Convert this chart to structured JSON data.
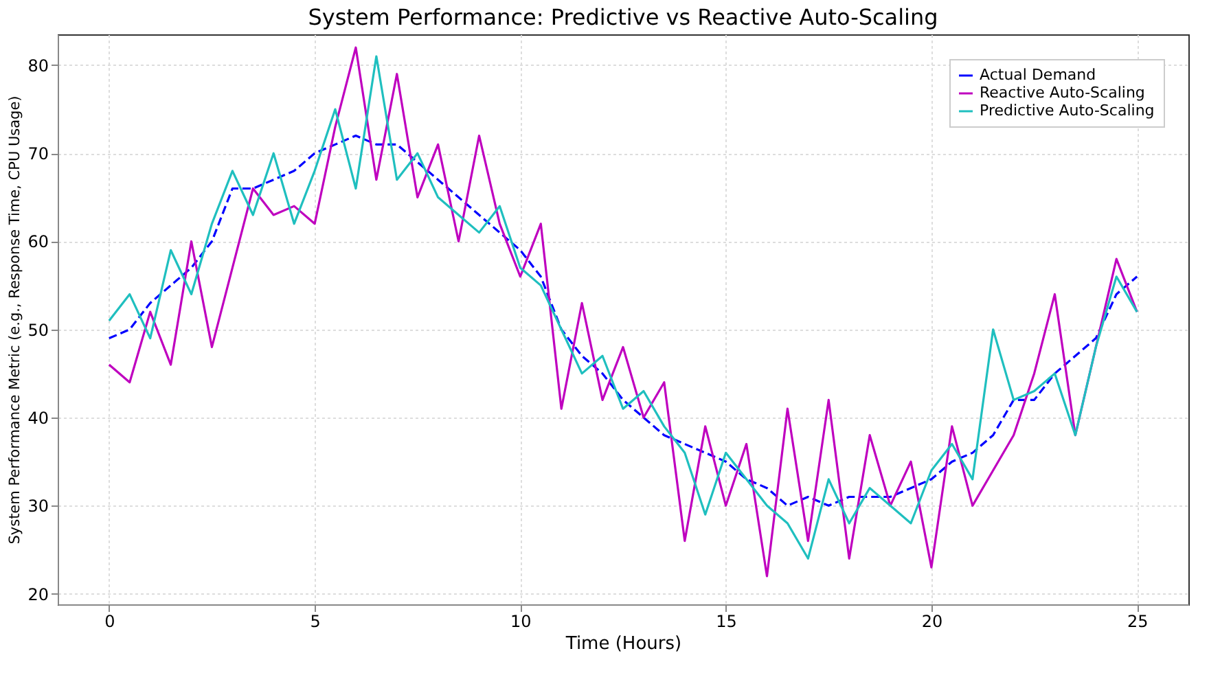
{
  "chart_data": {
    "type": "line",
    "title": "System Performance: Predictive vs Reactive Auto-Scaling",
    "xlabel": "Time (Hours)",
    "ylabel": "System Performance Metric (e.g., Response Time, CPU Usage)",
    "x": [
      0,
      0.5,
      1,
      1.5,
      2,
      2.5,
      3,
      3.5,
      4,
      4.5,
      5,
      5.5,
      6,
      6.5,
      7,
      7.5,
      8,
      8.5,
      9,
      9.5,
      10,
      10.5,
      11,
      11.5,
      12,
      12.5,
      13,
      13.5,
      14,
      14.5,
      15,
      15.5,
      16,
      16.5,
      17,
      17.5,
      18,
      18.5,
      19,
      19.5,
      20,
      20.5,
      21,
      21.5,
      22,
      22.5,
      23,
      23.5,
      24,
      24.5,
      25
    ],
    "series": [
      {
        "name": "Actual Demand",
        "color": "#0000ff",
        "line_style": "dashed",
        "values": [
          49,
          50,
          53,
          55,
          57,
          60,
          66,
          66,
          67,
          68,
          70,
          71,
          72,
          71,
          71,
          69,
          67,
          65,
          63,
          61,
          59,
          56,
          50,
          47,
          45,
          42,
          40,
          38,
          37,
          36,
          35,
          33,
          32,
          30,
          31,
          30,
          31,
          31,
          31,
          32,
          33,
          35,
          36,
          38,
          42,
          42,
          45,
          47,
          49,
          54,
          56
        ]
      },
      {
        "name": "Reactive Auto-Scaling",
        "color": "#bf00bf",
        "line_style": "solid",
        "values": [
          46,
          44,
          52,
          46,
          60,
          48,
          57,
          66,
          63,
          64,
          62,
          73,
          82,
          67,
          79,
          65,
          71,
          60,
          72,
          62,
          56,
          62,
          41,
          53,
          42,
          48,
          40,
          44,
          26,
          39,
          30,
          37,
          22,
          41,
          26,
          42,
          24,
          38,
          30,
          35,
          23,
          39,
          30,
          34,
          38,
          45,
          54,
          38,
          48,
          58,
          52
        ]
      },
      {
        "name": "Predictive Auto-Scaling",
        "color": "#1fbfbf",
        "line_style": "solid",
        "values": [
          51,
          54,
          49,
          59,
          54,
          62,
          68,
          63,
          70,
          62,
          68,
          75,
          66,
          81,
          67,
          70,
          65,
          63,
          61,
          64,
          57,
          55,
          50,
          45,
          47,
          41,
          43,
          39,
          36,
          29,
          36,
          33,
          30,
          28,
          24,
          33,
          28,
          32,
          30,
          28,
          34,
          37,
          33,
          50,
          42,
          43,
          45,
          38,
          48,
          56,
          52
        ]
      }
    ],
    "xlim": [
      -1.25,
      26.25
    ],
    "ylim": [
      18.8,
      83.5
    ],
    "xticks": [
      0,
      5,
      10,
      15,
      20,
      25
    ],
    "yticks": [
      20,
      30,
      40,
      50,
      60,
      70,
      80
    ],
    "grid": true,
    "legend": "top right",
    "marker": "none"
  }
}
